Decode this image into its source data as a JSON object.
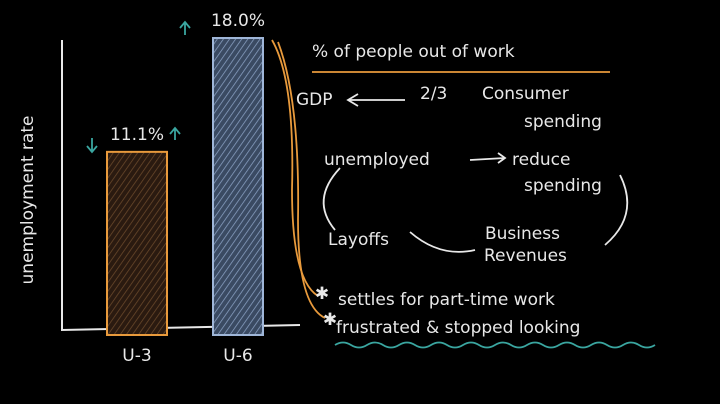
{
  "chart_data": {
    "type": "bar",
    "y_label": "unemployment rate",
    "categories": [
      "U-3",
      "U-6"
    ],
    "values": [
      11.1,
      18.0
    ],
    "value_labels": [
      "11.1%",
      "18.0%"
    ],
    "colors": [
      "#e89a3c",
      "#9fb6d8"
    ],
    "ylim": [
      0,
      18
    ],
    "annotations": [
      "% of people out of work",
      "GDP",
      "2/3",
      "Consumer",
      "spending",
      "unemployed",
      "reduce",
      "spending",
      "Layoffs",
      "Business",
      "Revenues",
      "settles for part-time work",
      "frustrated & stopped looking"
    ]
  }
}
